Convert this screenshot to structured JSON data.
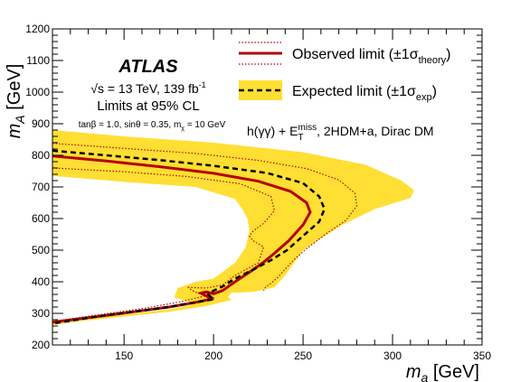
{
  "chart_data": {
    "type": "line",
    "xlabel_main": "m",
    "xlabel_sub": "a",
    "xlabel_unit": " [GeV]",
    "ylabel_main": "m",
    "ylabel_sub": "A",
    "ylabel_unit": " [GeV]",
    "xlim": [
      110,
      350
    ],
    "ylim": [
      200,
      1200
    ],
    "x_ticks": [
      150,
      200,
      250,
      300,
      350
    ],
    "y_ticks": [
      200,
      300,
      400,
      500,
      600,
      700,
      800,
      900,
      1000,
      1100,
      1200
    ],
    "atlas_label": "ATLAS",
    "energy_text": "√s = 13 TeV, 139 fb",
    "lumi_sup": "-1",
    "cl_text": "Limits at 95% CL",
    "params_text": "tanβ = 1.0, sinθ = 0.35, m",
    "params_sub": "χ",
    "params_tail": " = 10 GeV",
    "process_head": "h(γγ) + E",
    "process_sub": "T",
    "process_sup": "miss",
    "process_tail": ", 2HDM+a, Dirac DM",
    "legend": {
      "observed_head": "Observed limit (±1σ",
      "observed_sub": "theory",
      "observed_tail": ")",
      "expected_head": "Expected limit (±1σ",
      "expected_sub": "exp",
      "expected_tail": ")"
    },
    "colors": {
      "observed": "#b40000",
      "expected": "#000000",
      "band": "#ffdf33"
    },
    "series": [
      {
        "name": "Observed limit",
        "role": "observed",
        "points": [
          [
            110,
            798
          ],
          [
            140,
            782
          ],
          [
            170,
            764
          ],
          [
            200,
            743
          ],
          [
            225,
            718
          ],
          [
            243,
            686
          ],
          [
            252,
            650
          ],
          [
            254,
            620
          ],
          [
            250,
            580
          ],
          [
            242,
            530
          ],
          [
            234,
            490
          ],
          [
            228,
            462
          ],
          [
            220,
            430
          ],
          [
            212,
            400
          ],
          [
            205,
            372
          ],
          [
            200,
            362
          ],
          [
            196,
            368
          ],
          [
            193,
            364
          ],
          [
            197,
            352
          ],
          [
            200,
            347
          ],
          [
            190,
            335
          ],
          [
            175,
            320
          ],
          [
            155,
            305
          ],
          [
            135,
            290
          ],
          [
            110,
            272
          ]
        ]
      },
      {
        "name": "Expected limit",
        "role": "expected",
        "points": [
          [
            110,
            815
          ],
          [
            140,
            800
          ],
          [
            170,
            785
          ],
          [
            200,
            767
          ],
          [
            230,
            744
          ],
          [
            250,
            712
          ],
          [
            259,
            670
          ],
          [
            262,
            630
          ],
          [
            259,
            590
          ],
          [
            250,
            545
          ],
          [
            241,
            500
          ],
          [
            232,
            468
          ],
          [
            222,
            438
          ],
          [
            212,
            410
          ],
          [
            205,
            385
          ],
          [
            200,
            372
          ],
          [
            197,
            360
          ],
          [
            200,
            345
          ],
          [
            190,
            335
          ],
          [
            175,
            320
          ],
          [
            155,
            305
          ],
          [
            135,
            290
          ],
          [
            110,
            268
          ]
        ]
      },
      {
        "name": "Observed +1σ theory",
        "role": "theory_up",
        "points": [
          [
            110,
            838
          ],
          [
            150,
            822
          ],
          [
            190,
            806
          ],
          [
            225,
            784
          ],
          [
            252,
            758
          ],
          [
            270,
            722
          ],
          [
            279,
            680
          ],
          [
            280,
            640
          ],
          [
            274,
            595
          ],
          [
            262,
            548
          ],
          [
            252,
            505
          ],
          [
            245,
            470
          ],
          [
            240,
            440
          ],
          [
            236,
            415
          ],
          [
            232,
            395
          ],
          [
            229,
            382
          ],
          [
            228,
            372
          ]
        ]
      },
      {
        "name": "Observed -1σ theory",
        "role": "theory_down",
        "points": [
          [
            110,
            760
          ],
          [
            150,
            748
          ],
          [
            185,
            733
          ],
          [
            215,
            710
          ],
          [
            232,
            670
          ],
          [
            234,
            625
          ],
          [
            228,
            585
          ],
          [
            222,
            560
          ],
          [
            220,
            545
          ],
          [
            222,
            530
          ],
          [
            228,
            510
          ],
          [
            225,
            460
          ],
          [
            212,
            420
          ],
          [
            205,
            390
          ],
          [
            196,
            380
          ],
          [
            186,
            382
          ],
          [
            188,
            372
          ],
          [
            195,
            355
          ],
          [
            180,
            335
          ],
          [
            160,
            315
          ],
          [
            135,
            295
          ],
          [
            110,
            275
          ]
        ]
      },
      {
        "name": "Expected ±1σ band",
        "role": "band",
        "points": [
          [
            110,
            880
          ],
          [
            150,
            860
          ],
          [
            200,
            840
          ],
          [
            250,
            810
          ],
          [
            285,
            770
          ],
          [
            305,
            720
          ],
          [
            312,
            690
          ],
          [
            310,
            665
          ],
          [
            290,
            630
          ],
          [
            272,
            580
          ],
          [
            258,
            530
          ],
          [
            250,
            500
          ],
          [
            245,
            460
          ],
          [
            240,
            420
          ],
          [
            234,
            382
          ],
          [
            222,
            368
          ],
          [
            210,
            365
          ],
          [
            208,
            352
          ],
          [
            210,
            342
          ],
          [
            195,
            322
          ],
          [
            175,
            305
          ],
          [
            150,
            290
          ],
          [
            125,
            275
          ],
          [
            110,
            262
          ],
          [
            110,
            272
          ],
          [
            130,
            285
          ],
          [
            150,
            296
          ],
          [
            175,
            312
          ],
          [
            190,
            330
          ],
          [
            178,
            350
          ],
          [
            180,
            380
          ],
          [
            190,
            400
          ],
          [
            200,
            410
          ],
          [
            212,
            460
          ],
          [
            218,
            510
          ],
          [
            220,
            560
          ],
          [
            219,
            600
          ],
          [
            216,
            630
          ],
          [
            212,
            662
          ],
          [
            190,
            700
          ],
          [
            150,
            716
          ],
          [
            110,
            735
          ]
        ]
      }
    ]
  }
}
